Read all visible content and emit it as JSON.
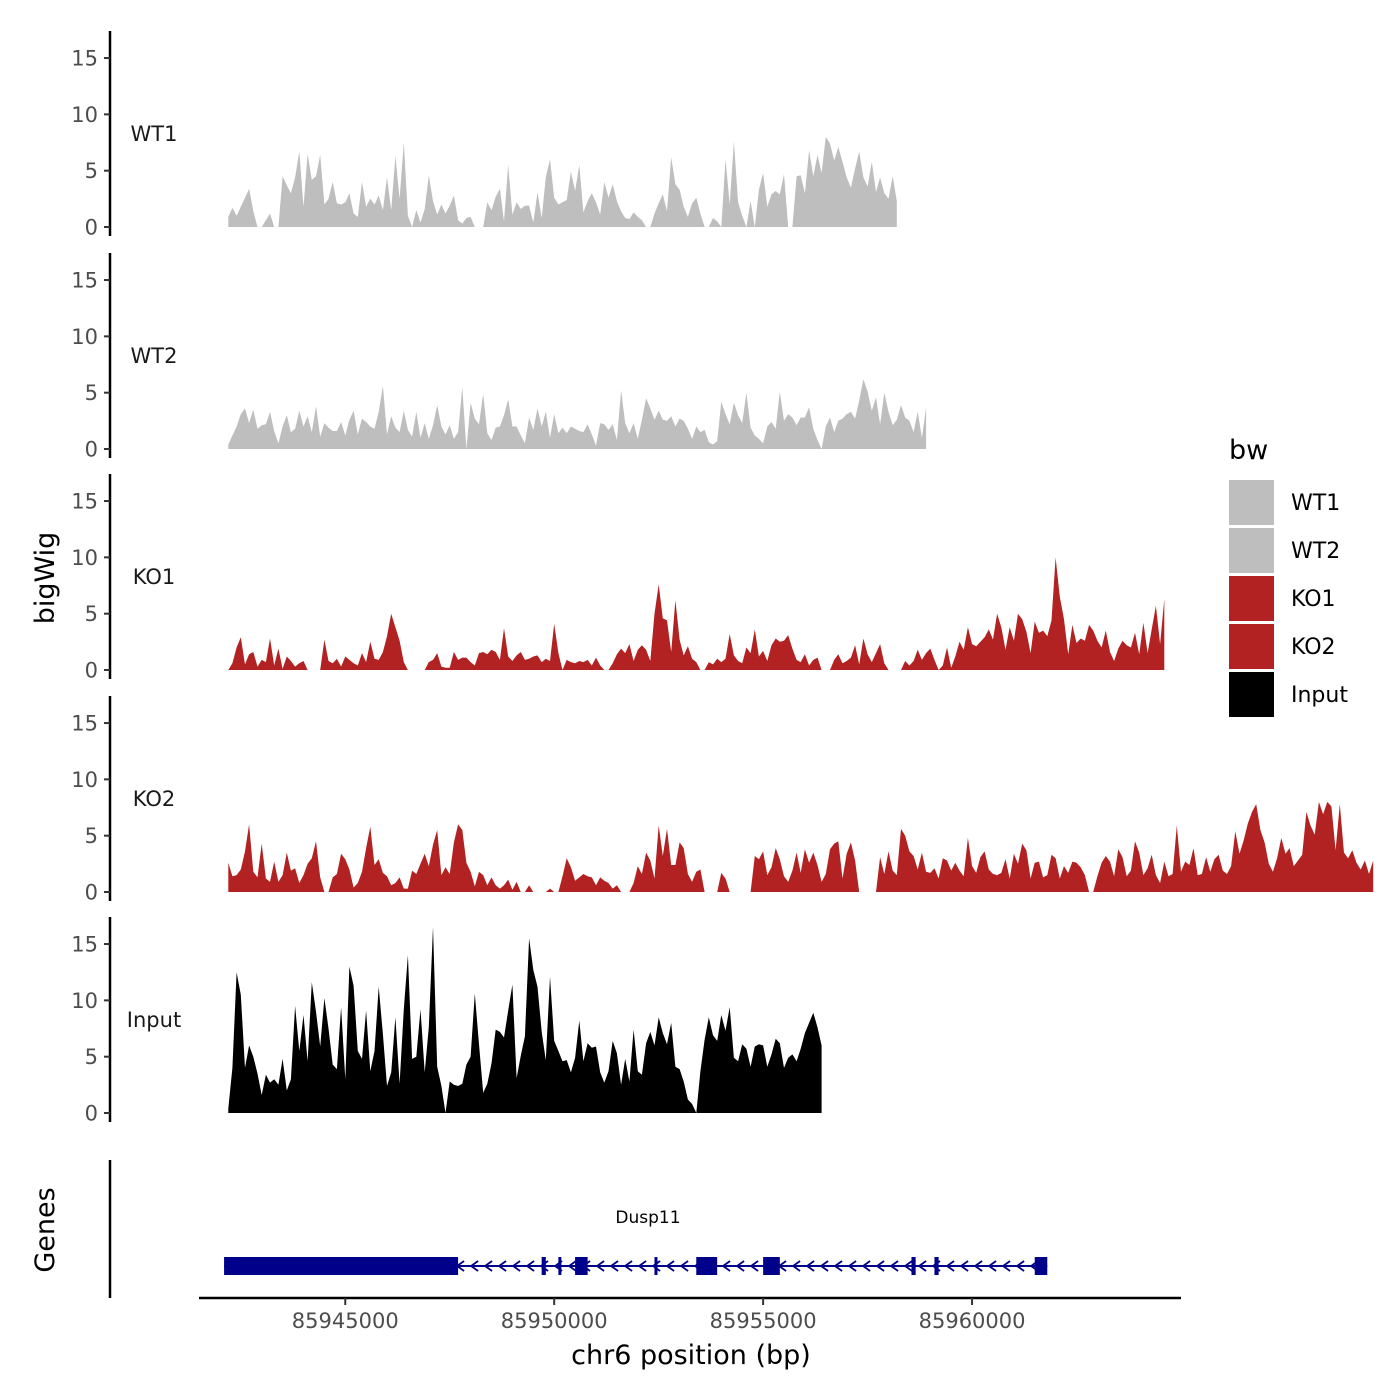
{
  "chart_data": {
    "type": "area",
    "chromosome": "chr6",
    "xlabel": "chr6 position (bp)",
    "ylabel": "bigWig",
    "xlim": [
      85941500,
      85965000
    ],
    "ylim": [
      0,
      17
    ],
    "x_ticks": [
      85945000,
      85950000,
      85955000,
      85960000
    ],
    "y_ticks": [
      0,
      5,
      10,
      15
    ],
    "legend": {
      "title": "bw",
      "position": "right",
      "entries": [
        {
          "label": "WT1",
          "color": "#bebebe"
        },
        {
          "label": "WT2",
          "color": "#bebebe"
        },
        {
          "label": "KO1",
          "color": "#b22222"
        },
        {
          "label": "KO2",
          "color": "#b22222"
        },
        {
          "label": "Input",
          "color": "#000000"
        }
      ]
    },
    "series": [
      {
        "name": "WT1",
        "color": "#bebebe",
        "x_start": 85942200,
        "x_step": 100,
        "values": [
          0.9,
          1.7,
          1.0,
          1.8,
          2.6,
          3.4,
          1.4,
          0.0,
          0.0,
          0.6,
          1.2,
          0.0,
          0.0,
          4.5,
          3.7,
          3.0,
          4.4,
          6.7,
          1.8,
          6.5,
          4.2,
          4.5,
          6.4,
          2.0,
          2.5,
          4.0,
          2.1,
          2.0,
          2.2,
          3.0,
          1.2,
          0.9,
          4.0,
          1.8,
          2.5,
          2.0,
          2.8,
          1.5,
          4.4,
          1.5,
          6.3,
          2.5,
          7.5,
          1.0,
          0.0,
          1.5,
          0.4,
          1.6,
          4.6,
          2.3,
          1.1,
          2.0,
          1.2,
          1.9,
          2.8,
          0.6,
          0.3,
          0.8,
          0.9,
          0.0,
          0.0,
          0.0,
          2.2,
          1.5,
          2.7,
          3.4,
          0.5,
          5.5,
          1.1,
          2.2,
          1.6,
          1.9,
          1.9,
          0.4,
          3.1,
          0.8,
          4.4,
          6.0,
          2.6,
          2.0,
          2.2,
          2.4,
          4.9,
          3.2,
          5.5,
          1.3,
          2.3,
          3.0,
          2.2,
          1.1,
          4.0,
          2.6,
          3.8,
          2.3,
          1.4,
          0.8,
          0.7,
          1.3,
          0.9,
          0.6,
          0.0,
          0.0,
          1.2,
          2.1,
          2.9,
          1.4,
          6.2,
          3.8,
          3.3,
          1.8,
          0.9,
          2.1,
          2.6,
          1.2,
          0.0,
          0.0,
          0.8,
          0.5,
          0.0,
          6.0,
          2.0,
          7.6,
          2.2,
          1.0,
          0.0,
          2.3,
          0.0,
          3.3,
          4.8,
          1.8,
          2.9,
          3.2,
          2.9,
          4.7,
          0.0,
          0.0,
          4.5,
          4.6,
          3.0,
          6.8,
          4.5,
          6.4,
          4.8,
          8.0,
          7.4,
          5.9,
          7.1,
          5.8,
          4.4,
          3.5,
          5.2,
          6.7,
          4.4,
          3.6,
          5.8,
          3.1,
          4.4,
          3.0,
          2.5,
          4.5,
          2.3
        ]
      },
      {
        "name": "WT2",
        "color": "#bebebe",
        "x_start": 85942200,
        "x_step": 100,
        "values": [
          0.4,
          1.2,
          2.0,
          3.1,
          3.6,
          2.3,
          3.5,
          1.8,
          2.1,
          2.2,
          3.3,
          1.6,
          0.5,
          2.0,
          3.0,
          1.5,
          1.8,
          3.4,
          2.0,
          2.9,
          1.5,
          3.8,
          1.1,
          2.3,
          1.9,
          1.6,
          1.6,
          2.4,
          1.2,
          2.6,
          3.4,
          1.3,
          2.7,
          2.4,
          2.0,
          1.8,
          3.3,
          5.6,
          1.3,
          2.9,
          1.9,
          1.5,
          3.4,
          1.7,
          1.1,
          3.3,
          1.0,
          2.3,
          0.9,
          2.1,
          3.9,
          2.0,
          1.3,
          2.1,
          0.9,
          1.5,
          5.5,
          0.0,
          4.1,
          2.7,
          2.2,
          4.9,
          1.4,
          0.8,
          1.9,
          2.0,
          3.0,
          4.4,
          2.0,
          2.0,
          1.2,
          0.5,
          2.8,
          1.7,
          3.6,
          2.0,
          3.3,
          1.0,
          3.1,
          1.4,
          1.9,
          1.4,
          2.0,
          1.8,
          1.6,
          1.5,
          2.2,
          1.3,
          0.3,
          2.3,
          2.2,
          1.7,
          2.2,
          0.8,
          5.2,
          2.3,
          1.4,
          2.3,
          0.9,
          2.6,
          4.5,
          3.6,
          2.6,
          3.4,
          2.6,
          2.5,
          2.9,
          2.0,
          2.7,
          2.5,
          1.8,
          0.9,
          2.0,
          1.5,
          1.7,
          0.6,
          0.4,
          0.7,
          4.2,
          3.1,
          2.2,
          4.1,
          3.0,
          2.3,
          5.0,
          1.9,
          1.2,
          0.9,
          0.5,
          2.0,
          2.4,
          1.8,
          5.1,
          2.5,
          3.1,
          2.8,
          2.1,
          2.8,
          2.8,
          3.7,
          1.8,
          0.8,
          0.0,
          2.0,
          2.8,
          1.5,
          2.5,
          2.7,
          3.1,
          3.3,
          2.7,
          4.3,
          6.2,
          5.1,
          3.4,
          4.6,
          2.2,
          5.0,
          3.3,
          2.1,
          2.6,
          3.9,
          2.8,
          2.5,
          1.5,
          3.3,
          1.0,
          3.7
        ]
      },
      {
        "name": "KO1",
        "color": "#b22222",
        "x_start": 85942200,
        "x_step": 100,
        "values": [
          0.0,
          0.6,
          2.0,
          2.9,
          0.5,
          1.4,
          1.6,
          0.3,
          0.9,
          0.7,
          2.8,
          0.4,
          1.9,
          0.1,
          1.2,
          0.8,
          0.3,
          0.6,
          0.8,
          0.0,
          0.0,
          0.0,
          0.0,
          2.7,
          0.8,
          0.6,
          1.0,
          0.3,
          1.2,
          0.9,
          0.6,
          0.4,
          1.5,
          0.7,
          2.5,
          1.0,
          0.9,
          1.6,
          3.0,
          5.0,
          3.8,
          2.6,
          0.7,
          0.0,
          0.0,
          0.0,
          0.0,
          0.0,
          0.7,
          0.9,
          1.5,
          0.3,
          0.2,
          0.2,
          1.6,
          0.9,
          1.1,
          1.1,
          0.7,
          0.4,
          1.5,
          1.6,
          1.4,
          1.8,
          1.6,
          0.9,
          3.7,
          1.2,
          0.8,
          1.3,
          1.6,
          0.9,
          1.0,
          1.2,
          1.3,
          0.7,
          1.0,
          0.8,
          4.1,
          1.5,
          0.0,
          0.9,
          0.7,
          0.6,
          0.8,
          0.7,
          0.9,
          0.4,
          1.1,
          0.4,
          0.0,
          0.0,
          0.6,
          1.4,
          1.9,
          1.5,
          2.3,
          0.8,
          1.8,
          2.2,
          1.8,
          0.8,
          5.0,
          7.6,
          4.6,
          4.4,
          1.6,
          6.2,
          2.7,
          1.3,
          2.1,
          1.0,
          0.7,
          0.0,
          0.0,
          0.7,
          0.5,
          1.0,
          0.7,
          1.0,
          3.2,
          1.3,
          0.8,
          0.6,
          2.0,
          1.5,
          3.6,
          1.2,
          1.7,
          0.8,
          2.2,
          2.8,
          2.5,
          2.6,
          3.1,
          1.9,
          0.9,
          0.7,
          1.4,
          0.4,
          0.9,
          1.1,
          0.0,
          0.0,
          0.0,
          0.9,
          1.4,
          0.6,
          0.8,
          1.1,
          2.2,
          0.5,
          2.8,
          1.4,
          0.7,
          1.5,
          2.3,
          0.6,
          0.0,
          0.0,
          0.0,
          0.0,
          0.8,
          0.4,
          0.8,
          1.8,
          0.9,
          1.5,
          1.9,
          0.9,
          0.0,
          0.4,
          2.0,
          0.2,
          1.2,
          2.5,
          1.8,
          3.8,
          2.3,
          2.1,
          2.5,
          2.9,
          3.6,
          2.7,
          5.0,
          3.8,
          1.8,
          3.8,
          2.6,
          5.0,
          4.5,
          3.4,
          1.5,
          4.3,
          3.3,
          3.5,
          3.0,
          4.4,
          10.0,
          6.5,
          4.5,
          1.4,
          4.0,
          2.4,
          2.8,
          2.6,
          4.0,
          3.5,
          2.6,
          2.0,
          3.5,
          1.6,
          0.8,
          1.9,
          2.6,
          2.2,
          2.0,
          3.3,
          1.4,
          4.2,
          1.5,
          3.6,
          5.7,
          2.3,
          6.3
        ]
      },
      {
        "name": "KO2",
        "color": "#b22222",
        "x_start": 85942200,
        "x_step": 100,
        "values": [
          2.6,
          1.4,
          1.5,
          2.0,
          3.6,
          6.0,
          1.8,
          1.3,
          4.3,
          1.2,
          0.9,
          2.7,
          0.9,
          1.5,
          3.5,
          1.9,
          2.1,
          0.8,
          1.5,
          2.5,
          3.0,
          4.5,
          1.3,
          0.0,
          0.0,
          1.3,
          1.6,
          3.4,
          2.9,
          2.0,
          0.4,
          0.8,
          1.8,
          3.9,
          5.8,
          2.4,
          2.9,
          1.7,
          1.4,
          0.6,
          0.8,
          1.3,
          0.3,
          0.3,
          1.9,
          1.6,
          2.5,
          3.4,
          2.3,
          4.2,
          5.5,
          1.5,
          2.2,
          1.6,
          4.4,
          6.0,
          5.5,
          2.6,
          1.8,
          0.5,
          1.8,
          1.5,
          0.6,
          1.3,
          0.6,
          0.3,
          0.6,
          1.1,
          0.2,
          0.9,
          0.0,
          0.0,
          0.6,
          0.0,
          0.0,
          0.0,
          0.0,
          0.3,
          0.0,
          0.0,
          1.4,
          3.0,
          2.2,
          1.0,
          1.3,
          1.6,
          1.4,
          1.3,
          0.6,
          1.3,
          1.0,
          0.8,
          0.3,
          0.6,
          0.0,
          0.0,
          0.0,
          0.8,
          2.3,
          1.6,
          3.5,
          2.8,
          1.2,
          5.9,
          3.2,
          5.6,
          2.4,
          2.4,
          4.4,
          3.9,
          1.6,
          0.9,
          1.8,
          2.0,
          0.0,
          0.0,
          0.0,
          0.0,
          1.7,
          1.2,
          0.0,
          0.0,
          0.0,
          0.0,
          0.0,
          0.0,
          3.2,
          2.9,
          3.6,
          1.5,
          2.2,
          3.9,
          2.9,
          1.4,
          0.9,
          1.9,
          3.5,
          1.7,
          3.8,
          2.6,
          3.5,
          2.4,
          0.9,
          1.6,
          3.8,
          4.3,
          4.5,
          1.2,
          3.4,
          4.4,
          2.8,
          0.0,
          0.0,
          0.0,
          0.0,
          0.0,
          3.1,
          1.6,
          3.6,
          1.9,
          1.5,
          5.6,
          5.0,
          3.6,
          3.2,
          2.0,
          3.5,
          1.8,
          1.7,
          2.1,
          1.2,
          3.0,
          2.8,
          1.9,
          2.6,
          1.9,
          1.4,
          4.8,
          2.3,
          1.7,
          3.1,
          3.6,
          2.0,
          1.6,
          1.5,
          1.7,
          2.9,
          1.2,
          3.4,
          2.5,
          4.3,
          3.7,
          1.2,
          2.6,
          2.7,
          1.3,
          1.5,
          3.3,
          3.0,
          1.2,
          2.3,
          1.7,
          2.7,
          2.6,
          2.2,
          1.5,
          0.0,
          0.0,
          1.4,
          2.6,
          3.2,
          2.7,
          1.4,
          3.8,
          3.1,
          1.4,
          1.9,
          4.5,
          3.5,
          1.5,
          2.1,
          3.3,
          1.5,
          0.8,
          2.7,
          1.4,
          1.6,
          5.9,
          1.8,
          2.7,
          2.4,
          3.9,
          1.5,
          1.6,
          3.1,
          1.8,
          2.9,
          3.3,
          1.9,
          1.6,
          2.3,
          5.4,
          3.4,
          4.6,
          6.1,
          7.1,
          7.8,
          5.5,
          4.4,
          2.5,
          1.8,
          3.0,
          4.8,
          3.4,
          3.9,
          2.3,
          2.8,
          3.3,
          7.1,
          5.9,
          5.1,
          8.0,
          6.9,
          8.0,
          7.6,
          3.7,
          7.8,
          3.5,
          3.0,
          3.7,
          2.6,
          2.0,
          2.8,
          1.6,
          2.8
        ]
      },
      {
        "name": "Input",
        "color": "#000000",
        "x_start": 85942200,
        "x_step": 100,
        "values": [
          0.4,
          4.0,
          12.5,
          10.5,
          4.0,
          6.0,
          5.0,
          3.5,
          1.6,
          3.4,
          2.7,
          3.0,
          2.5,
          4.8,
          2.0,
          3.0,
          9.5,
          5.5,
          8.7,
          4.6,
          11.6,
          9.0,
          5.9,
          10.2,
          7.5,
          4.3,
          3.9,
          9.4,
          3.0,
          13.0,
          11.3,
          5.5,
          4.8,
          9.1,
          3.7,
          5.5,
          11.2,
          7.0,
          2.4,
          3.6,
          8.5,
          2.6,
          9.2,
          14.0,
          4.8,
          5.0,
          9.2,
          3.6,
          7.6,
          16.5,
          4.1,
          2.4,
          0.0,
          2.8,
          2.5,
          2.4,
          2.6,
          4.3,
          5.0,
          10.6,
          6.1,
          1.8,
          2.6,
          4.4,
          7.4,
          7.2,
          6.7,
          9.1,
          11.4,
          3.1,
          5.1,
          6.8,
          15.5,
          12.7,
          11.2,
          7.2,
          4.7,
          12.1,
          6.4,
          5.5,
          4.6,
          4.7,
          3.6,
          4.9,
          8.2,
          4.6,
          6.2,
          5.8,
          5.9,
          3.6,
          2.7,
          3.7,
          6.4,
          5.3,
          2.5,
          4.8,
          2.8,
          7.4,
          3.7,
          3.4,
          6.2,
          7.2,
          6.0,
          8.5,
          7.1,
          6.1,
          8.0,
          4.1,
          3.9,
          2.8,
          1.2,
          0.8,
          0.0,
          3.7,
          6.5,
          8.5,
          6.9,
          6.4,
          8.7,
          7.3,
          9.4,
          4.9,
          4.6,
          6.1,
          5.7,
          4.1,
          5.9,
          6.1,
          6.0,
          4.1,
          5.2,
          6.6,
          6.2,
          4.0,
          4.9,
          5.2,
          4.6,
          5.7,
          7.1,
          8.0,
          8.9,
          7.6,
          6.0
        ]
      }
    ],
    "gene_track": {
      "title": "Genes",
      "gene_name": "Dusp11",
      "color": "#00008b",
      "strand": "-",
      "start": 85942100,
      "end": 85961800,
      "exons": [
        {
          "start": 85942100,
          "end": 85947700
        },
        {
          "start": 85949700,
          "end": 85949800
        },
        {
          "start": 85950100,
          "end": 85950150
        },
        {
          "start": 85950500,
          "end": 85950800
        },
        {
          "start": 85952400,
          "end": 85952450
        },
        {
          "start": 85953400,
          "end": 85953900
        },
        {
          "start": 85955000,
          "end": 85955400
        },
        {
          "start": 85958550,
          "end": 85958650
        },
        {
          "start": 85959100,
          "end": 85959200
        },
        {
          "start": 85961500,
          "end": 85961800
        }
      ]
    }
  }
}
